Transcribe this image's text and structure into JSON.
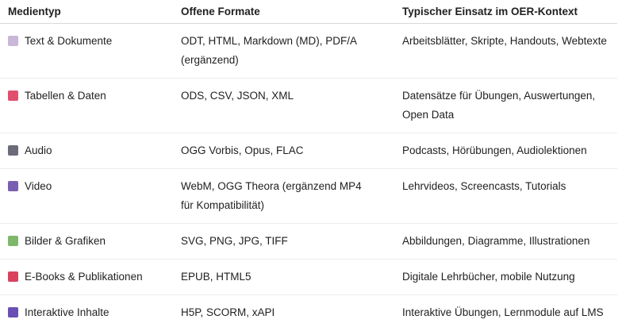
{
  "headers": [
    "Medientyp",
    "Offene Formate",
    "Typischer Einsatz im OER-Kontext"
  ],
  "rows": [
    {
      "icon": "memo-icon",
      "color": "#c9b7d8",
      "type": "Text & Dokumente",
      "formats": [
        "ODT, HTML, Markdown (MD), PDF/A",
        "(ergänzend)"
      ],
      "usage": [
        "Arbeitsblätter, Skripte, Handouts, Webtexte"
      ]
    },
    {
      "icon": "bar-chart-icon",
      "color": "#e0506e",
      "type": "Tabellen & Daten",
      "formats": [
        "ODS, CSV, JSON, XML"
      ],
      "usage": [
        "Datensätze für Übungen, Auswertungen,",
        "Open Data"
      ]
    },
    {
      "icon": "microphone-icon",
      "color": "#6b6b7a",
      "type": "Audio",
      "formats": [
        "OGG Vorbis, Opus, FLAC"
      ],
      "usage": [
        "Podcasts, Hörübungen, Audiolektionen"
      ]
    },
    {
      "icon": "clapper-board-icon",
      "color": "#7a5fb0",
      "type": "Video",
      "formats": [
        "WebM, OGG Theora (ergänzend MP4",
        "für Kompatibilität)"
      ],
      "usage": [
        "Lehrvideos, Screencasts, Tutorials"
      ]
    },
    {
      "icon": "framed-picture-icon",
      "color": "#7fb86a",
      "type": "Bilder & Grafiken",
      "formats": [
        "SVG, PNG, JPG, TIFF"
      ],
      "usage": [
        "Abbildungen, Diagramme, Illustrationen"
      ]
    },
    {
      "icon": "books-icon",
      "color": "#d9415f",
      "type": "E-Books & Publikationen",
      "formats": [
        "EPUB, HTML5"
      ],
      "usage": [
        "Digitale Lehrbücher, mobile Nutzung"
      ]
    },
    {
      "icon": "game-controller-icon",
      "color": "#6a4fb5",
      "type": "Interaktive Inhalte",
      "formats": [
        "H5P, SCORM, xAPI"
      ],
      "usage": [
        "Interaktive Übungen, Lernmodule auf LMS"
      ]
    }
  ]
}
